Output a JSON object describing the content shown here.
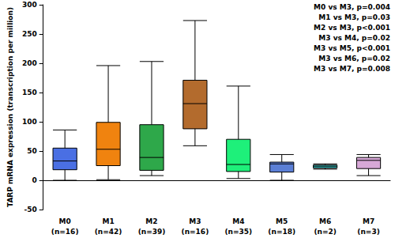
{
  "chart_data": {
    "type": "boxplot",
    "ylabel": "TARP mRNA expression (transcription per million)",
    "categories": [
      "M0\n(n=16)",
      "M1\n(n=42)",
      "M2\n(n=39)",
      "M3\n(n=16)",
      "M4\n(n=35)",
      "M5\n(n=18)",
      "M6\n(n=2)",
      "M7\n(n=3)"
    ],
    "boxes": [
      {
        "min": 0,
        "q1": 18,
        "median": 33,
        "q3": 55,
        "max": 86
      },
      {
        "min": 1,
        "q1": 25,
        "median": 53,
        "q3": 99,
        "max": 196
      },
      {
        "min": 8,
        "q1": 17,
        "median": 39,
        "q3": 95,
        "max": 203
      },
      {
        "min": 59,
        "q1": 88,
        "median": 131,
        "q3": 171,
        "max": 273
      },
      {
        "min": 3,
        "q1": 15,
        "median": 27,
        "q3": 70,
        "max": 161
      },
      {
        "min": 0,
        "q1": 14,
        "median": 28,
        "q3": 31,
        "max": 44
      },
      {
        "min": 19,
        "q1": 21,
        "median": 24,
        "q3": 26,
        "max": 28
      },
      {
        "min": 8,
        "q1": 20,
        "median": 34,
        "q3": 39,
        "max": 44
      }
    ],
    "colors": [
      "#4a6fe3",
      "#f0830f",
      "#2ea84a",
      "#b36b2d",
      "#1ef07a",
      "#5b7fd6",
      "#3cc8c8",
      "#d7a8d7"
    ],
    "ylim": [
      -50,
      300
    ],
    "yticks": [
      -50,
      0,
      50,
      100,
      150,
      200,
      250,
      300
    ],
    "grid": false,
    "annotations": [
      "M0 vs M3, p=0.004",
      "M1 vs M3, p=0.03",
      "M2 vs M3, p<0.001",
      "M3 vs M4, p=0.02",
      "M3 vs M5, p<0.001",
      "M3 vs M6, p=0.02",
      "M3 vs M7, p=0.008"
    ]
  }
}
